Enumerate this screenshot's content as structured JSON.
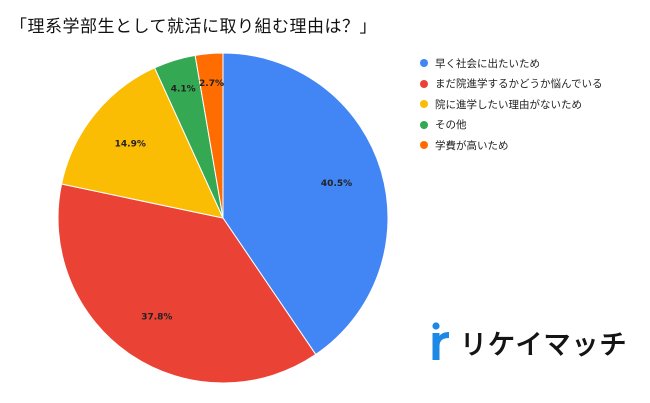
{
  "chart_data": {
    "type": "pie",
    "title": "「理系学部生として就活に取り組む理由は？」",
    "categories": [
      "早く社会に出たいため",
      "まだ院進学するかどうか悩んでいる",
      "院に進学したい理由がないため",
      "その他",
      "学費が高いため"
    ],
    "values": [
      40.5,
      37.8,
      14.9,
      4.1,
      2.7
    ],
    "labels": [
      "40.5%",
      "37.8%",
      "14.9%",
      "4.1%",
      "2.7%"
    ],
    "colors": [
      "#4285F4",
      "#EA4335",
      "#FBBC04",
      "#34A853",
      "#FF6D01"
    ],
    "start_angle": "12 o'clock",
    "direction": "clockwise",
    "legend_position": "right"
  },
  "brand": {
    "name": "リケイマッチ",
    "mark_color": "#1E88E5",
    "icon": "r-logo-icon"
  }
}
